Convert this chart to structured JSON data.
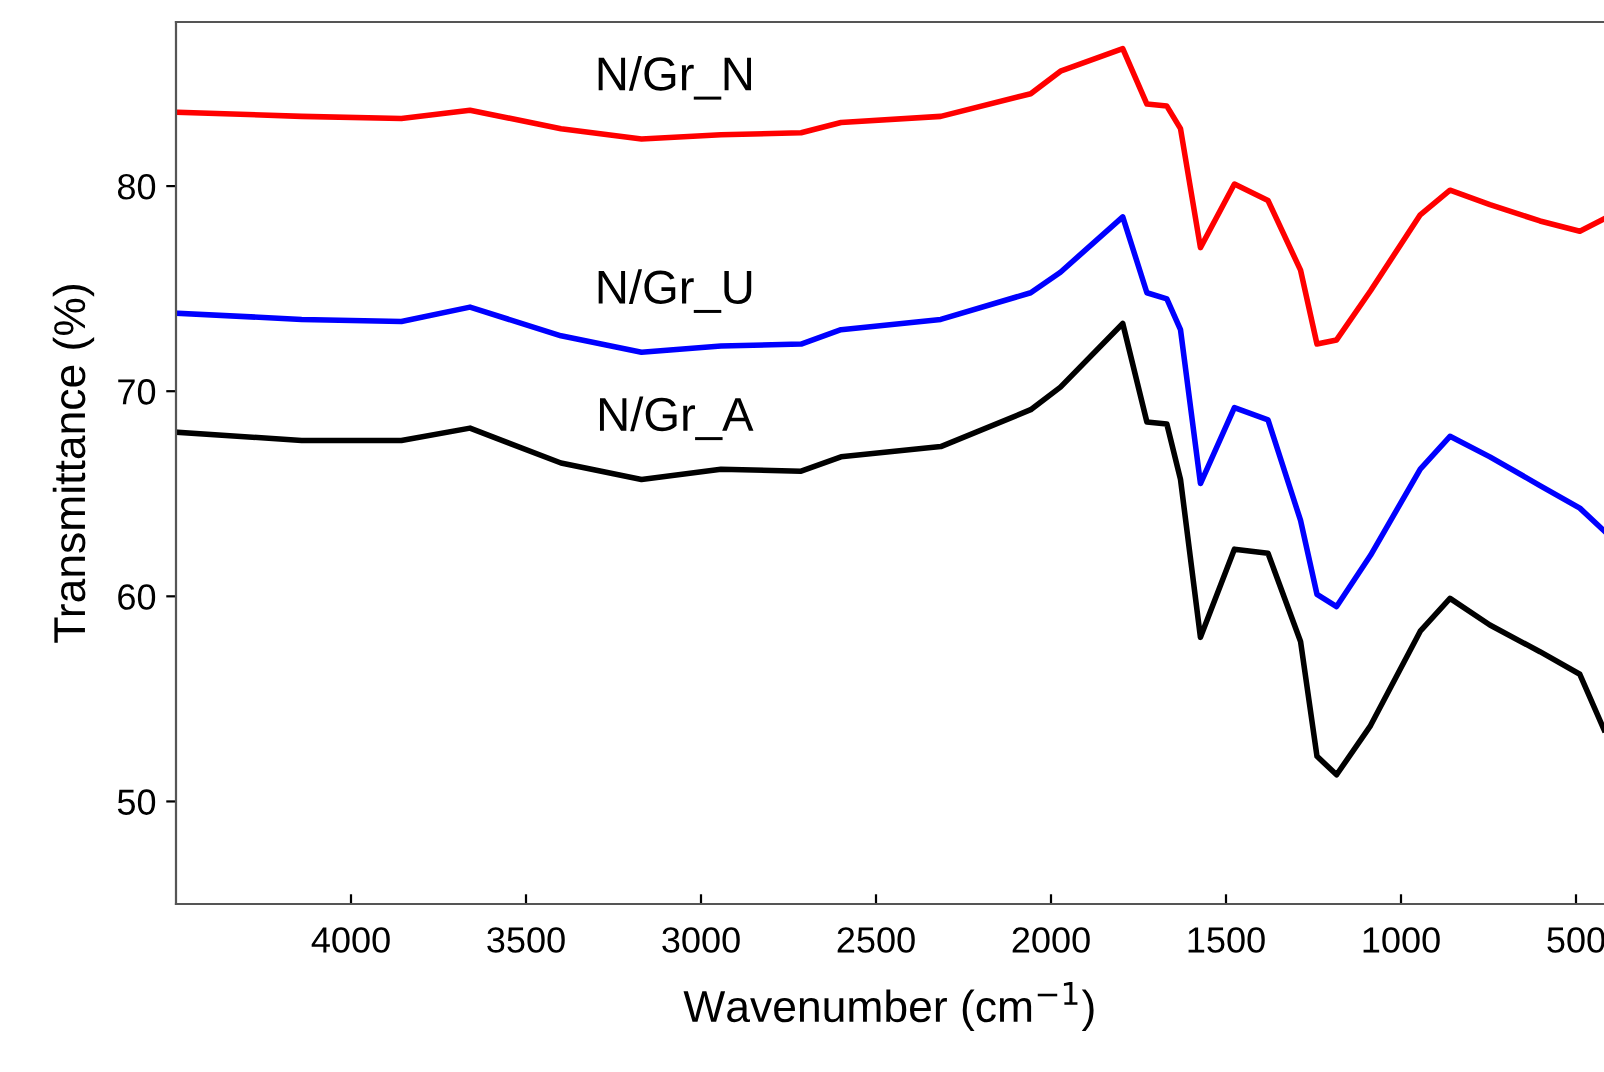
{
  "chart_data": {
    "type": "line",
    "xlabel": "Wavenumber (cm$^{−1}$)",
    "ylabel": "Transmittance (%)",
    "xlim": [
      4500,
      420
    ],
    "ylim": [
      45,
      88
    ],
    "xticks": [
      4000,
      3500,
      3000,
      2500,
      2000,
      1500,
      1000,
      500
    ],
    "yticks": [
      50,
      60,
      70,
      80
    ],
    "grid": false,
    "legend": false,
    "marker": "none",
    "line_style": "solid",
    "x": [
      4495,
      4141,
      3856,
      3660,
      3400,
      3170,
      2943,
      2714,
      2600,
      2315,
      2058,
      1973,
      1795,
      1726,
      1669,
      1630,
      1573,
      1476,
      1380,
      1287,
      1240,
      1184,
      1087,
      945,
      860,
      746,
      603,
      489,
      420
    ],
    "series": [
      {
        "name": "N/Gr_N",
        "color": "#ff0000",
        "values": [
          83.6,
          83.4,
          83.3,
          83.7,
          82.8,
          82.3,
          82.5,
          82.6,
          83.1,
          83.4,
          84.5,
          85.6,
          86.7,
          84.0,
          83.9,
          82.8,
          77.0,
          80.1,
          79.3,
          75.9,
          72.3,
          72.5,
          74.9,
          78.6,
          79.8,
          79.1,
          78.3,
          77.8,
          78.4
        ]
      },
      {
        "name": "N/Gr_U",
        "color": "#0000ff",
        "values": [
          73.8,
          73.5,
          73.4,
          74.1,
          72.7,
          71.9,
          72.2,
          72.3,
          73.0,
          73.5,
          74.8,
          75.8,
          78.5,
          74.8,
          74.5,
          73.0,
          65.5,
          69.2,
          68.6,
          63.7,
          60.1,
          59.5,
          62.0,
          66.2,
          67.8,
          66.8,
          65.4,
          64.3,
          63.2
        ]
      },
      {
        "name": "N/Gr_A",
        "color": "#000000",
        "values": [
          68.0,
          67.6,
          67.6,
          68.2,
          66.5,
          65.7,
          66.2,
          66.1,
          66.8,
          67.3,
          69.1,
          70.2,
          73.3,
          68.5,
          68.4,
          65.7,
          58.0,
          62.3,
          62.1,
          57.8,
          52.2,
          51.3,
          53.7,
          58.3,
          59.9,
          58.6,
          57.3,
          56.2,
          53.5
        ]
      }
    ]
  }
}
